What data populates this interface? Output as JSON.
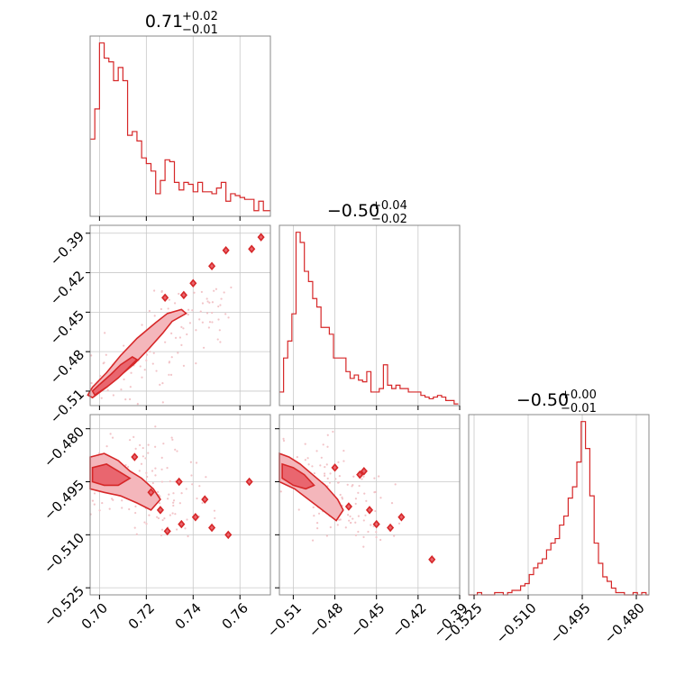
{
  "chart_data": [
    {
      "type": "histogram",
      "panel": "diag-0",
      "title": "0.71",
      "title_sup": "+0.02",
      "title_sub": "−0.01",
      "xlim": [
        0.696,
        0.773
      ],
      "xticks": [
        0.7,
        0.72,
        0.74,
        0.76
      ],
      "bin_edges": [
        0.696,
        0.698,
        0.7,
        0.702,
        0.704,
        0.706,
        0.708,
        0.71,
        0.712,
        0.714,
        0.716,
        0.718,
        0.72,
        0.722,
        0.724,
        0.726,
        0.728,
        0.73,
        0.732,
        0.734,
        0.736,
        0.738,
        0.74,
        0.742,
        0.744,
        0.746,
        0.748,
        0.75,
        0.752,
        0.754,
        0.756,
        0.758,
        0.76,
        0.762,
        0.764,
        0.766,
        0.768,
        0.77,
        0.773
      ],
      "counts": [
        41,
        57,
        92,
        84,
        82,
        72,
        79,
        72,
        43,
        45,
        40,
        31,
        28,
        24,
        12,
        19,
        30,
        29,
        18,
        14,
        18,
        17,
        13,
        18,
        13,
        13,
        12,
        15,
        18,
        8,
        12,
        11,
        10,
        9,
        9,
        3,
        8,
        3
      ]
    },
    {
      "type": "histogram",
      "panel": "diag-1",
      "title": "−0.50",
      "title_sup": "+0.04",
      "title_sub": "−0.02",
      "xlim": [
        -0.52,
        -0.39
      ],
      "xticks": [
        -0.51,
        -0.48,
        -0.45,
        -0.42,
        -0.39
      ],
      "tick_labels": [
        "−0.51",
        "−0.48",
        "−0.45",
        "−0.42",
        "−0.39"
      ],
      "bin_edges": [
        -0.52,
        -0.517,
        -0.514,
        -0.511,
        -0.508,
        -0.505,
        -0.502,
        -0.499,
        -0.496,
        -0.493,
        -0.49,
        -0.487,
        -0.484,
        -0.481,
        -0.478,
        -0.475,
        -0.472,
        -0.469,
        -0.466,
        -0.463,
        -0.46,
        -0.457,
        -0.454,
        -0.451,
        -0.448,
        -0.445,
        -0.442,
        -0.439,
        -0.436,
        -0.433,
        -0.43,
        -0.427,
        -0.424,
        -0.421,
        -0.418,
        -0.415,
        -0.412,
        -0.409,
        -0.406,
        -0.403,
        -0.4,
        -0.397,
        -0.394,
        -0.391
      ],
      "counts": [
        8,
        28,
        38,
        54,
        102,
        96,
        79,
        73,
        63,
        58,
        46,
        46,
        42,
        28,
        28,
        28,
        20,
        16,
        18,
        15,
        14,
        20,
        8,
        8,
        10,
        24,
        12,
        10,
        12,
        10,
        10,
        8,
        8,
        8,
        6,
        5,
        4,
        5,
        6,
        5,
        3,
        3,
        1
      ]
    },
    {
      "type": "histogram",
      "panel": "diag-2",
      "title": "−0.50",
      "title_sup": "+0.00",
      "title_sub": "−0.01",
      "xlim": [
        -0.5265,
        -0.4765
      ],
      "xticks": [
        -0.525,
        -0.51,
        -0.495,
        -0.48
      ],
      "tick_labels": [
        "−0.525",
        "−0.510",
        "−0.495",
        "−0.480"
      ],
      "bin_edges": [
        -0.5265,
        -0.5253,
        -0.5241,
        -0.5229,
        -0.5217,
        -0.5205,
        -0.5193,
        -0.5181,
        -0.5169,
        -0.5157,
        -0.5145,
        -0.5133,
        -0.5121,
        -0.5109,
        -0.5097,
        -0.5085,
        -0.5073,
        -0.5061,
        -0.5049,
        -0.5037,
        -0.5025,
        -0.5013,
        -0.5001,
        -0.4989,
        -0.4977,
        -0.4965,
        -0.4953,
        -0.4941,
        -0.4929,
        -0.4917,
        -0.4905,
        -0.4893,
        -0.4881,
        -0.4869,
        -0.4857,
        -0.4845,
        -0.4833,
        -0.4821,
        -0.4809,
        -0.4797,
        -0.4785,
        -0.4773,
        -0.4765
      ],
      "counts": [
        0,
        0,
        1,
        0,
        0,
        0,
        1,
        1,
        0,
        1,
        2,
        2,
        4,
        5,
        9,
        12,
        14,
        16,
        20,
        23,
        25,
        31,
        35,
        43,
        48,
        59,
        77,
        65,
        44,
        23,
        14,
        8,
        6,
        3,
        1,
        1,
        0,
        0,
        1,
        0,
        1,
        0
      ]
    },
    {
      "type": "contour",
      "panel": "pair-1-0",
      "xlim": [
        0.696,
        0.773
      ],
      "ylim": [
        -0.521,
        -0.384
      ],
      "xticks": [
        0.7,
        0.72,
        0.74,
        0.76
      ],
      "tick_labels_x": [
        "0.70",
        "0.72",
        "0.74",
        "0.76"
      ],
      "yticks": [
        -0.39,
        -0.42,
        -0.45,
        -0.48,
        -0.51
      ],
      "tick_labels_y": [
        "−0.39",
        "−0.42",
        "−0.45",
        "−0.48",
        "−0.51"
      ],
      "outer": [
        [
          0.697,
          -0.515
        ],
        [
          0.703,
          -0.507
        ],
        [
          0.709,
          -0.498
        ],
        [
          0.715,
          -0.489
        ],
        [
          0.721,
          -0.478
        ],
        [
          0.727,
          -0.466
        ],
        [
          0.731,
          -0.457
        ],
        [
          0.734,
          -0.454
        ],
        [
          0.737,
          -0.451
        ],
        [
          0.735,
          -0.448
        ],
        [
          0.729,
          -0.451
        ],
        [
          0.724,
          -0.458
        ],
        [
          0.716,
          -0.47
        ],
        [
          0.709,
          -0.483
        ],
        [
          0.703,
          -0.496
        ],
        [
          0.697,
          -0.507
        ],
        [
          0.695,
          -0.513
        ]
      ],
      "inner": [
        [
          0.698,
          -0.513
        ],
        [
          0.703,
          -0.507
        ],
        [
          0.708,
          -0.5
        ],
        [
          0.712,
          -0.493
        ],
        [
          0.716,
          -0.486
        ],
        [
          0.714,
          -0.484
        ],
        [
          0.709,
          -0.49
        ],
        [
          0.705,
          -0.497
        ],
        [
          0.7,
          -0.505
        ],
        [
          0.697,
          -0.51
        ]
      ],
      "islands": [
        [
          0.754,
          -0.403
        ],
        [
          0.748,
          -0.415
        ],
        [
          0.736,
          -0.437
        ],
        [
          0.769,
          -0.393
        ],
        [
          0.74,
          -0.428
        ],
        [
          0.728,
          -0.439
        ],
        [
          0.765,
          -0.402
        ]
      ]
    },
    {
      "type": "contour",
      "panel": "pair-2-0",
      "xlim": [
        0.696,
        0.773
      ],
      "ylim": [
        -0.527,
        -0.476
      ],
      "xticks": [
        0.7,
        0.72,
        0.74,
        0.76
      ],
      "tick_labels_x": [
        "0.70",
        "0.72",
        "0.74",
        "0.76"
      ],
      "yticks": [
        -0.48,
        -0.495,
        -0.51,
        -0.525
      ],
      "tick_labels_y": [
        "−0.480",
        "−0.495",
        "−0.510",
        "−0.525"
      ],
      "outer": [
        [
          0.696,
          -0.488
        ],
        [
          0.702,
          -0.487
        ],
        [
          0.708,
          -0.489
        ],
        [
          0.713,
          -0.492
        ],
        [
          0.718,
          -0.494
        ],
        [
          0.723,
          -0.497
        ],
        [
          0.726,
          -0.5
        ],
        [
          0.722,
          -0.503
        ],
        [
          0.716,
          -0.501
        ],
        [
          0.709,
          -0.499
        ],
        [
          0.702,
          -0.498
        ],
        [
          0.696,
          -0.497
        ]
      ],
      "inner": [
        [
          0.697,
          -0.491
        ],
        [
          0.703,
          -0.49
        ],
        [
          0.708,
          -0.492
        ],
        [
          0.713,
          -0.494
        ],
        [
          0.708,
          -0.496
        ],
        [
          0.702,
          -0.496
        ],
        [
          0.697,
          -0.495
        ]
      ],
      "islands": [
        [
          0.722,
          -0.498
        ],
        [
          0.726,
          -0.503
        ],
        [
          0.734,
          -0.495
        ],
        [
          0.735,
          -0.507
        ],
        [
          0.729,
          -0.509
        ],
        [
          0.745,
          -0.5
        ],
        [
          0.748,
          -0.508
        ],
        [
          0.755,
          -0.51
        ],
        [
          0.764,
          -0.495
        ],
        [
          0.715,
          -0.488
        ],
        [
          0.741,
          -0.505
        ]
      ]
    },
    {
      "type": "contour",
      "panel": "pair-2-1",
      "xlim": [
        -0.52,
        -0.39
      ],
      "ylim": [
        -0.527,
        -0.476
      ],
      "xticks": [
        -0.51,
        -0.48,
        -0.45,
        -0.42,
        -0.39
      ],
      "tick_labels_x": [
        "−0.51",
        "−0.48",
        "−0.45",
        "−0.42",
        "−0.39"
      ],
      "yticks": [
        -0.48,
        -0.495,
        -0.51,
        -0.525
      ],
      "outer": [
        [
          -0.52,
          -0.487
        ],
        [
          -0.513,
          -0.488
        ],
        [
          -0.505,
          -0.49
        ],
        [
          -0.496,
          -0.493
        ],
        [
          -0.487,
          -0.496
        ],
        [
          -0.478,
          -0.5
        ],
        [
          -0.474,
          -0.503
        ],
        [
          -0.479,
          -0.506
        ],
        [
          -0.489,
          -0.503
        ],
        [
          -0.499,
          -0.5
        ],
        [
          -0.509,
          -0.497
        ],
        [
          -0.52,
          -0.495
        ]
      ],
      "inner": [
        [
          -0.518,
          -0.49
        ],
        [
          -0.51,
          -0.491
        ],
        [
          -0.502,
          -0.493
        ],
        [
          -0.495,
          -0.496
        ],
        [
          -0.501,
          -0.497
        ],
        [
          -0.51,
          -0.496
        ],
        [
          -0.518,
          -0.494
        ]
      ],
      "islands": [
        [
          -0.47,
          -0.502
        ],
        [
          -0.462,
          -0.493
        ],
        [
          -0.455,
          -0.503
        ],
        [
          -0.45,
          -0.507
        ],
        [
          -0.44,
          -0.508
        ],
        [
          -0.432,
          -0.505
        ],
        [
          -0.41,
          -0.517
        ],
        [
          -0.459,
          -0.492
        ],
        [
          -0.48,
          -0.491
        ]
      ]
    }
  ]
}
